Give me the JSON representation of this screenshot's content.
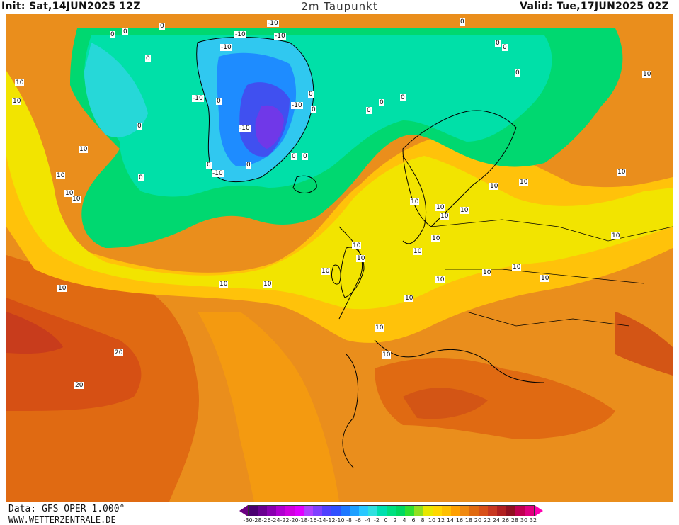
{
  "header": {
    "init": "Init: Sat,14JUN2025 12Z",
    "title": "2m Taupunkt",
    "valid": "Valid: Tue,17JUN2025 02Z"
  },
  "footer": {
    "data_source": "Data: GFS OPER 1.000°",
    "website": "WWW.WETTERZENTRALE.DE"
  },
  "legend": {
    "ticks": [
      "-30",
      "-28",
      "-26",
      "-24",
      "-22",
      "-20",
      "-18",
      "-16",
      "-14",
      "-12",
      "-10",
      "-8",
      "-6",
      "-4",
      "-2",
      "0",
      "2",
      "4",
      "6",
      "8",
      "10",
      "12",
      "14",
      "16",
      "18",
      "20",
      "22",
      "24",
      "26",
      "28",
      "30",
      "32"
    ],
    "colors": [
      "#4a0070",
      "#6a0090",
      "#8a00b0",
      "#b000d0",
      "#d000e0",
      "#e000ff",
      "#b040ff",
      "#8040ff",
      "#5040ff",
      "#3050ff",
      "#1e78ff",
      "#1ea0ff",
      "#28c8ff",
      "#30e0e0",
      "#00e0b0",
      "#00e080",
      "#00d860",
      "#30e030",
      "#90e020",
      "#e8e800",
      "#ffd700",
      "#ffc000",
      "#ffa000",
      "#f08a10",
      "#e06a10",
      "#d85018",
      "#c83820",
      "#b02020",
      "#901020",
      "#c00050",
      "#e00080"
    ],
    "arrow_left_color": "#6a0080",
    "arrow_right_color": "#ff00b0"
  },
  "map": {
    "contour_labels": [
      {
        "t": "10"
      },
      {
        "t": "10"
      },
      {
        "t": "10"
      },
      {
        "t": "10"
      },
      {
        "t": "10"
      },
      {
        "t": "10"
      },
      {
        "t": "10"
      },
      {
        "t": "10"
      },
      {
        "t": "10"
      },
      {
        "t": "10"
      },
      {
        "t": "10"
      },
      {
        "t": "10"
      },
      {
        "t": "10"
      },
      {
        "t": "10"
      },
      {
        "t": "10"
      },
      {
        "t": "10"
      },
      {
        "t": "10"
      },
      {
        "t": "10"
      },
      {
        "t": "10"
      },
      {
        "t": "10"
      },
      {
        "t": "10"
      },
      {
        "t": "10"
      },
      {
        "t": "10"
      },
      {
        "t": "10"
      },
      {
        "t": "10"
      },
      {
        "t": "10"
      },
      {
        "t": "10"
      },
      {
        "t": "10"
      },
      {
        "t": "10"
      },
      {
        "t": "10"
      },
      {
        "t": "20"
      },
      {
        "t": "20"
      },
      {
        "t": "0"
      },
      {
        "t": "0"
      },
      {
        "t": "0"
      },
      {
        "t": "0"
      },
      {
        "t": "0"
      },
      {
        "t": "0"
      },
      {
        "t": "0"
      },
      {
        "t": "0"
      },
      {
        "t": "0"
      },
      {
        "t": "0"
      },
      {
        "t": "0"
      },
      {
        "t": "0"
      },
      {
        "t": "0"
      },
      {
        "t": "0"
      },
      {
        "t": "0"
      },
      {
        "t": "0"
      },
      {
        "t": "0"
      },
      {
        "t": "0"
      },
      {
        "t": "0"
      },
      {
        "t": "0"
      },
      {
        "t": "-10"
      },
      {
        "t": "-10"
      },
      {
        "t": "-10"
      },
      {
        "t": "-10"
      },
      {
        "t": "-10"
      },
      {
        "t": "-10"
      },
      {
        "t": "-10"
      },
      {
        "t": "-10"
      }
    ]
  }
}
